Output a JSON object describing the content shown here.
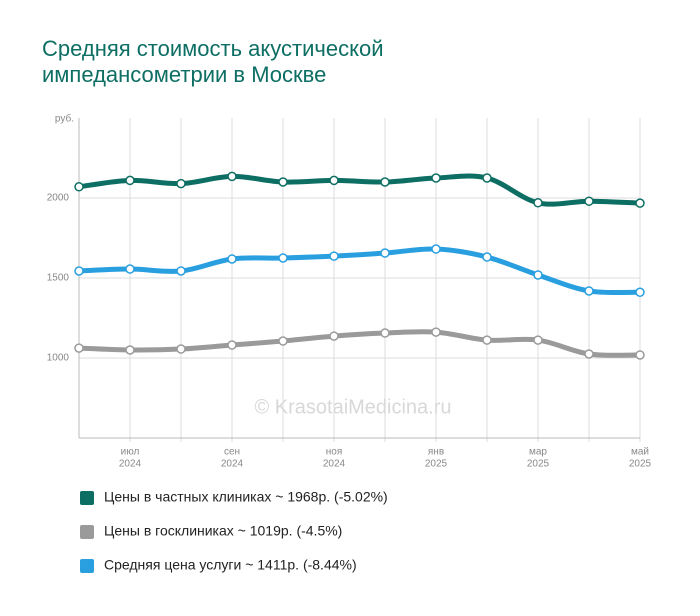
{
  "chart_data": {
    "type": "line",
    "title": [
      "Средняя стоимость акустической",
      "импедансометрии в Москве"
    ],
    "y_unit": "руб.",
    "watermark": "© KrasotaiMedicina.ru",
    "categories": [
      null,
      {
        "month": "июл",
        "year": "2024"
      },
      null,
      {
        "month": "сен",
        "year": "2024"
      },
      null,
      {
        "month": "ноя",
        "year": "2024"
      },
      null,
      {
        "month": "янв",
        "year": "2025"
      },
      null,
      {
        "month": "мар",
        "year": "2025"
      },
      null,
      {
        "month": "май",
        "year": "2025"
      }
    ],
    "ylim": [
      500,
      2500
    ],
    "yticks": [
      1000,
      1500,
      2000
    ],
    "grid": true,
    "series": [
      {
        "name": "Цены в частных клиниках ~ 1968р. (-5.02%)",
        "color": "#0d6e63",
        "values": [
          2070,
          2110,
          2090,
          2135,
          2100,
          2110,
          2100,
          2125,
          2125,
          1970,
          1980,
          1968
        ]
      },
      {
        "name": "Цены в госклиниках ~ 1019р. (-4.5%)",
        "color": "#9a9a9a",
        "values": [
          1062,
          1050,
          1056,
          1081,
          1106,
          1137,
          1156,
          1162,
          1112,
          1112,
          1025,
          1019
        ]
      },
      {
        "name": "Средняя цена услуги ~ 1411р. (-8.44%)",
        "color": "#2a9fe0",
        "values": [
          1544,
          1556,
          1544,
          1619,
          1625,
          1637,
          1656,
          1681,
          1631,
          1519,
          1419,
          1411
        ]
      }
    ]
  }
}
